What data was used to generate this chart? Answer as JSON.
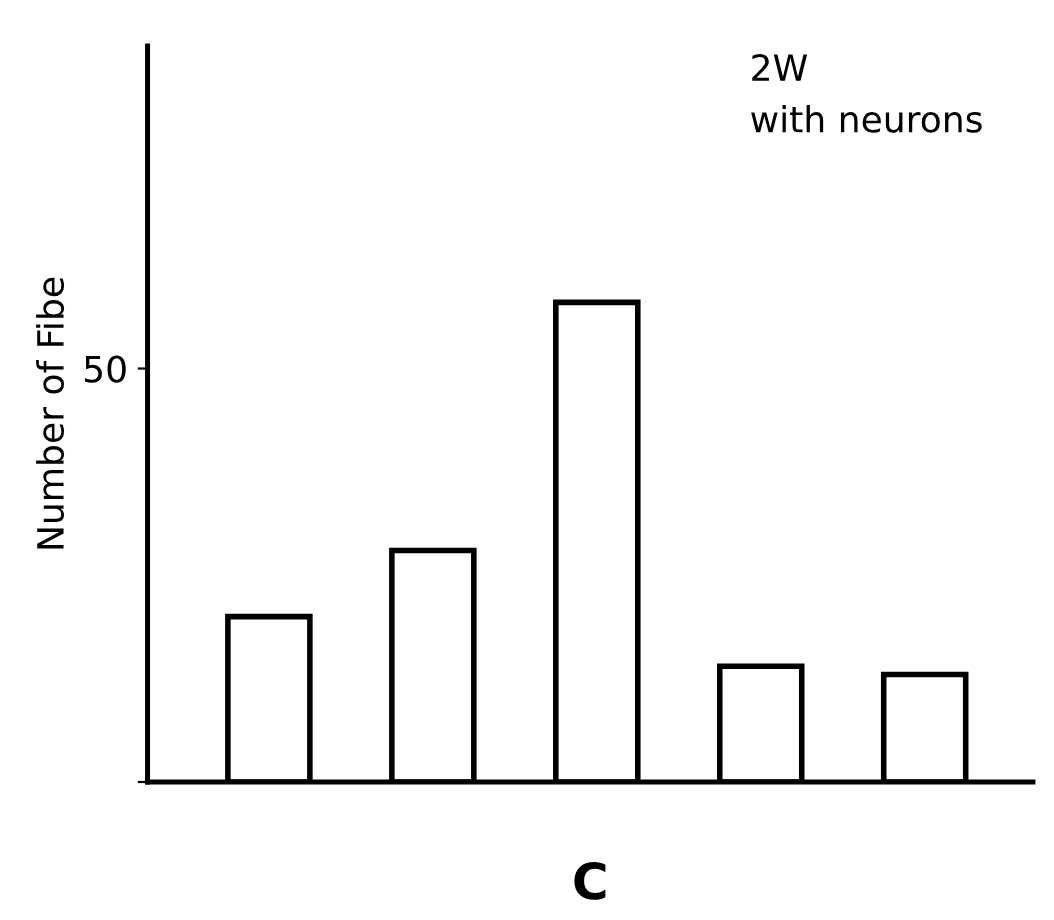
{
  "chart_data": {
    "type": "bar",
    "xlabel": "C",
    "ylabel": "Number of Fibe",
    "categories": [
      null,
      null,
      null,
      null,
      null
    ],
    "values": [
      20,
      28,
      58,
      14,
      13
    ],
    "color": "#ffffff",
    "ylim": [
      0,
      89
    ],
    "yticks": [
      {
        "value": 0,
        "label": null
      },
      50
    ],
    "annotations": [
      "2W",
      "with neurons"
    ],
    "grid": false,
    "legend": false
  }
}
